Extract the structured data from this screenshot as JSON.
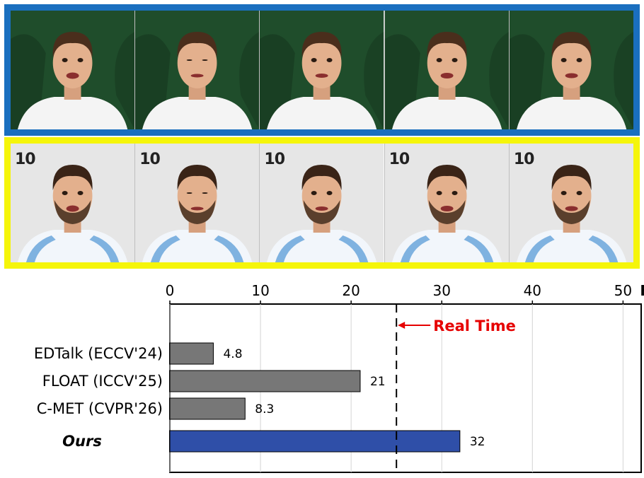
{
  "figure": {
    "top_row_label": "",
    "bottom_row_jersey_number": "10",
    "frame_count": 5,
    "colors": {
      "top_border": "#1a6fbf",
      "bottom_border": "#f5f50a",
      "background_top": "#1f4d2b",
      "background_bottom": "#e6e6e6"
    }
  },
  "chart_data": {
    "type": "bar",
    "orientation": "horizontal",
    "categories": [
      "EDTalk (ECCV'24)",
      "FLOAT (ICCV'25)",
      "C-MET (CVPR'26)",
      "Ours"
    ],
    "values": [
      4.8,
      21,
      8.3,
      32
    ],
    "value_labels": [
      "4.8",
      "21",
      "8.3",
      "32"
    ],
    "bar_colors": [
      "#777777",
      "#777777",
      "#777777",
      "#2f4fa8"
    ],
    "xlim": [
      0,
      52
    ],
    "xticks": [
      0,
      10,
      20,
      30,
      40,
      50
    ],
    "xtick_labels": [
      "0",
      "10",
      "20",
      "30",
      "40",
      "50"
    ],
    "xlabel": "FPS",
    "axis_position": "top",
    "reference_line": {
      "value": 25,
      "label": "Real Time",
      "style": "dashed",
      "color": "#e60000"
    },
    "gridlines": "vertical"
  }
}
